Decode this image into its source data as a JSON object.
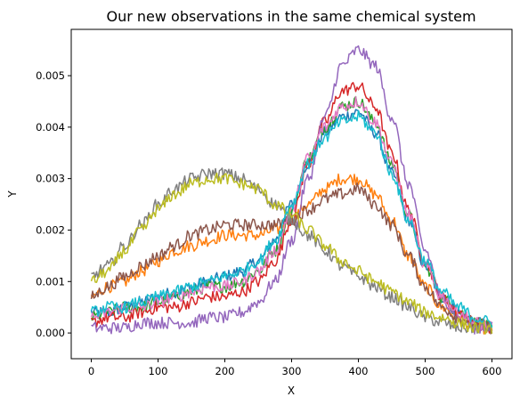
{
  "chart_data": {
    "type": "line",
    "title": "Our new observations in the same chemical system",
    "xlabel": "X",
    "ylabel": "Y",
    "xlim": [
      -30,
      630
    ],
    "ylim": [
      -0.0005,
      0.0059
    ],
    "xticks": [
      0,
      100,
      200,
      300,
      400,
      500,
      600
    ],
    "xtick_labels": [
      "0",
      "100",
      "200",
      "300",
      "400",
      "500",
      "600"
    ],
    "yticks": [
      0.0,
      0.001,
      0.002,
      0.003,
      0.004,
      0.005
    ],
    "ytick_labels": [
      "0.000",
      "0.001",
      "0.002",
      "0.003",
      "0.004",
      "0.005"
    ],
    "grid": false,
    "legend": "none",
    "x": [
      0,
      25,
      50,
      75,
      100,
      125,
      150,
      175,
      200,
      225,
      250,
      275,
      300,
      325,
      350,
      375,
      400,
      425,
      450,
      475,
      500,
      525,
      550,
      575,
      600
    ],
    "noise_amplitude": 0.00012,
    "series": [
      {
        "color": "#1f77b4",
        "values": [
          0.0004,
          0.0004,
          0.0005,
          0.0006,
          0.0007,
          0.0008,
          0.0009,
          0.001,
          0.0011,
          0.0012,
          0.0014,
          0.0018,
          0.0025,
          0.0033,
          0.0039,
          0.0042,
          0.0043,
          0.0039,
          0.0031,
          0.0022,
          0.0013,
          0.0007,
          0.0004,
          0.0002,
          0.0001
        ]
      },
      {
        "color": "#ff7f0e",
        "values": [
          0.0007,
          0.0009,
          0.001,
          0.0012,
          0.0014,
          0.0016,
          0.0017,
          0.0018,
          0.0019,
          0.0019,
          0.0019,
          0.002,
          0.0022,
          0.0025,
          0.0028,
          0.003,
          0.003,
          0.0027,
          0.0022,
          0.0015,
          0.0009,
          0.0005,
          0.0003,
          0.0001,
          0.0001
        ]
      },
      {
        "color": "#2ca02c",
        "values": [
          0.0003,
          0.0004,
          0.0005,
          0.0005,
          0.0006,
          0.0007,
          0.0008,
          0.0009,
          0.0009,
          0.001,
          0.0012,
          0.0016,
          0.0024,
          0.0034,
          0.004,
          0.0044,
          0.0045,
          0.0041,
          0.0033,
          0.0023,
          0.0013,
          0.0007,
          0.0004,
          0.0002,
          0.0001
        ]
      },
      {
        "color": "#d62728",
        "values": [
          0.0002,
          0.0003,
          0.0003,
          0.0004,
          0.0005,
          0.0005,
          0.0006,
          0.0007,
          0.0007,
          0.0008,
          0.001,
          0.0014,
          0.0022,
          0.0033,
          0.0041,
          0.0047,
          0.0048,
          0.0044,
          0.0035,
          0.0024,
          0.0014,
          0.0007,
          0.0004,
          0.0002,
          0.0001
        ]
      },
      {
        "color": "#9467bd",
        "values": [
          0.0001,
          0.0001,
          0.0001,
          0.0002,
          0.0002,
          0.0002,
          0.0002,
          0.0003,
          0.0003,
          0.0004,
          0.0006,
          0.001,
          0.0018,
          0.003,
          0.0042,
          0.0052,
          0.0055,
          0.0052,
          0.0042,
          0.0029,
          0.0016,
          0.0007,
          0.0003,
          0.0001,
          0.0001
        ]
      },
      {
        "color": "#8c564b",
        "values": [
          0.0007,
          0.0009,
          0.0011,
          0.0013,
          0.0015,
          0.0017,
          0.0019,
          0.002,
          0.0021,
          0.0021,
          0.0021,
          0.0021,
          0.0022,
          0.0024,
          0.0026,
          0.0027,
          0.0028,
          0.0025,
          0.0021,
          0.0015,
          0.0009,
          0.0005,
          0.0003,
          0.0002,
          0.0001
        ]
      },
      {
        "color": "#e377c2",
        "values": [
          0.0003,
          0.0004,
          0.0005,
          0.0005,
          0.0006,
          0.0007,
          0.0008,
          0.0009,
          0.0009,
          0.001,
          0.0012,
          0.0016,
          0.0024,
          0.0034,
          0.004,
          0.0044,
          0.0045,
          0.0041,
          0.0033,
          0.0023,
          0.0013,
          0.0007,
          0.0004,
          0.0002,
          0.0001
        ]
      },
      {
        "color": "#7f7f7f",
        "values": [
          0.0011,
          0.0013,
          0.0017,
          0.0021,
          0.0025,
          0.0028,
          0.003,
          0.0031,
          0.0031,
          0.003,
          0.0028,
          0.0025,
          0.0022,
          0.0019,
          0.0016,
          0.0013,
          0.0011,
          0.0009,
          0.0007,
          0.0005,
          0.0003,
          0.0002,
          0.0001,
          0.0001,
          0.0001
        ]
      },
      {
        "color": "#bcbd22",
        "values": [
          0.001,
          0.0012,
          0.0016,
          0.002,
          0.0024,
          0.0027,
          0.0029,
          0.003,
          0.003,
          0.0029,
          0.0028,
          0.0025,
          0.0023,
          0.002,
          0.0017,
          0.0014,
          0.0012,
          0.001,
          0.0008,
          0.0006,
          0.0004,
          0.0003,
          0.0002,
          0.0001,
          0.0001
        ]
      },
      {
        "color": "#17becf",
        "values": [
          0.0004,
          0.0005,
          0.0005,
          0.0006,
          0.0007,
          0.0008,
          0.0009,
          0.001,
          0.0011,
          0.0012,
          0.0014,
          0.0018,
          0.0025,
          0.0033,
          0.0038,
          0.0041,
          0.0042,
          0.0039,
          0.0031,
          0.0022,
          0.0014,
          0.0008,
          0.0005,
          0.0003,
          0.0002
        ]
      }
    ]
  }
}
